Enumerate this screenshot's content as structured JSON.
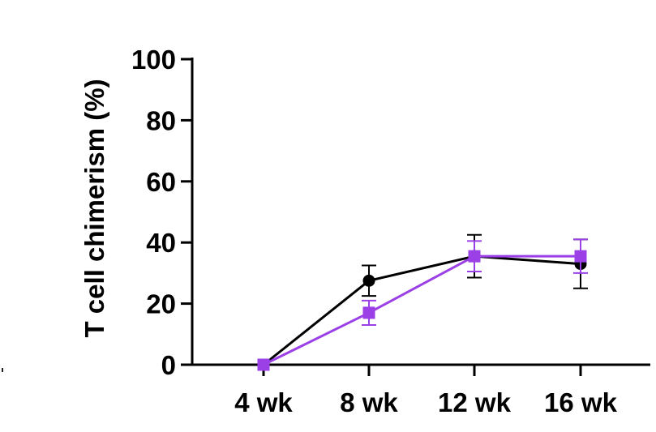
{
  "chart_data": {
    "type": "line",
    "title": "",
    "xlabel": "",
    "ylabel": "T cell chimerism (%)",
    "ylim": [
      0,
      100
    ],
    "yticks": [
      0,
      20,
      40,
      60,
      80,
      100
    ],
    "categories": [
      "4 wk",
      "8 wk",
      "12 wk",
      "16 wk"
    ],
    "grid": false,
    "legend": "none",
    "series": [
      {
        "marker": "circle",
        "color": "#000000",
        "values": [
          0,
          27.5,
          35.5,
          33
        ],
        "error": [
          0,
          5,
          7,
          8
        ]
      },
      {
        "marker": "square",
        "color": "#9b3fe6",
        "values": [
          0,
          17,
          35.5,
          35.5
        ],
        "error": [
          0,
          4,
          5,
          5.5
        ]
      }
    ]
  }
}
